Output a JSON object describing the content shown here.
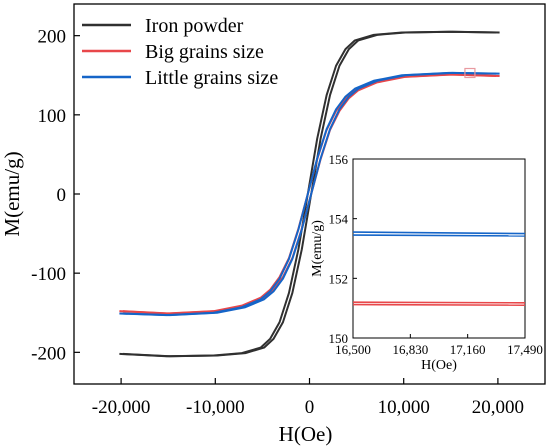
{
  "chart_data": [
    {
      "type": "line",
      "xlabel": "H(Oe)",
      "ylabel": "M(emu/g)",
      "xlim": [
        -25000,
        25000
      ],
      "ylim": [
        -240,
        240
      ],
      "x_ticks": [
        -20000,
        -10000,
        0,
        10000,
        20000
      ],
      "x_tick_labels": [
        "-20,000",
        "-10,000",
        "0",
        "10,000",
        "20,000"
      ],
      "y_ticks": [
        -200,
        -100,
        0,
        100,
        200
      ],
      "y_tick_labels": [
        "-200",
        "-100",
        "0",
        "100",
        "200"
      ],
      "legend_position": "top-left",
      "grid": false,
      "series": [
        {
          "name": "Iron powder",
          "color": "#303030",
          "x": [
            -20000,
            -15000,
            -10000,
            -7000,
            -5000,
            -4000,
            -3000,
            -2000,
            -1000,
            0,
            1000,
            2000,
            3000,
            4000,
            5000,
            7000,
            10000,
            15000,
            20000
          ],
          "y": [
            -202,
            -205,
            -204,
            -201,
            -194,
            -183,
            -162,
            -125,
            -70,
            0,
            70,
            125,
            162,
            183,
            194,
            201,
            204,
            205,
            204
          ]
        },
        {
          "name": "Big grains size",
          "color": "#e8474a",
          "x": [
            -20000,
            -15000,
            -10000,
            -7000,
            -5000,
            -4000,
            -3000,
            -2000,
            -1000,
            0,
            1000,
            2000,
            3000,
            4000,
            5000,
            7000,
            10000,
            15000,
            20000
          ],
          "y": [
            -148,
            -151,
            -148,
            -141,
            -131,
            -121,
            -105,
            -81,
            -44,
            0,
            44,
            81,
            105,
            121,
            131,
            141,
            148,
            151,
            149
          ]
        },
        {
          "name": "Little grains size",
          "color": "#1565c8",
          "x": [
            -20000,
            -15000,
            -10000,
            -7000,
            -5000,
            -4000,
            -3000,
            -2000,
            -1000,
            0,
            1000,
            2000,
            3000,
            4000,
            5000,
            7000,
            10000,
            15000,
            20000
          ],
          "y": [
            -151,
            -153,
            -150,
            -143,
            -133,
            -123,
            -107,
            -82,
            -45,
            0,
            45,
            82,
            107,
            123,
            133,
            143,
            150,
            153,
            152
          ]
        }
      ],
      "highlight_box": {
        "x": [
          16500,
          17490
        ],
        "y": [
          150,
          156
        ]
      }
    },
    {
      "type": "line",
      "role": "inset",
      "xlabel": "H(Oe)",
      "ylabel": "M(emu/g)",
      "xlim": [
        16500,
        17490
      ],
      "ylim": [
        150,
        156
      ],
      "x_ticks": [
        16500,
        16830,
        17160,
        17490
      ],
      "x_tick_labels": [
        "16,500",
        "16,830",
        "17,160",
        "17,490"
      ],
      "y_ticks": [
        150,
        152,
        154,
        156
      ],
      "y_tick_labels": [
        "150",
        "152",
        "154",
        "156"
      ],
      "series": [
        {
          "name": "Little grains size (upper branch)",
          "color": "#1565c8",
          "x": [
            16500,
            17490
          ],
          "y": [
            153.55,
            153.5
          ]
        },
        {
          "name": "Little grains size (lower branch)",
          "color": "#1565c8",
          "x": [
            16500,
            17490
          ],
          "y": [
            153.45,
            153.42
          ]
        },
        {
          "name": "Big grains size (upper branch)",
          "color": "#e8474a",
          "x": [
            16500,
            17490
          ],
          "y": [
            151.2,
            151.18
          ]
        },
        {
          "name": "Big grains size (lower branch)",
          "color": "#e8474a",
          "x": [
            16500,
            17490
          ],
          "y": [
            151.12,
            151.1
          ]
        }
      ]
    }
  ]
}
